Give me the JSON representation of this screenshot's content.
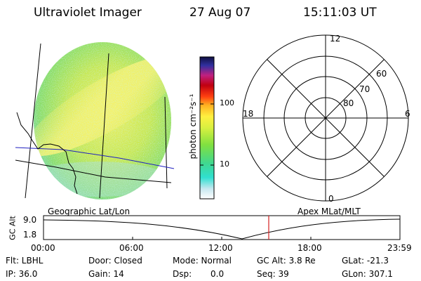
{
  "header": {
    "instrument": "Ultraviolet Imager",
    "date": "27 Aug 07",
    "time": "15:11:03 UT"
  },
  "image_panel": {
    "projection_label": "Geographic Lat/Lon"
  },
  "colorbar": {
    "unit_label": "photon cm⁻²s⁻¹",
    "tick_labels": [
      "100",
      "10"
    ]
  },
  "polar_plot": {
    "projection_label": "Apex MLat/MLT",
    "mlt_labels": {
      "top": "12",
      "left": "18",
      "right": "6",
      "bottom": "0"
    },
    "mlat_labels": [
      "60",
      "70",
      "80"
    ]
  },
  "altitude_plot": {
    "ylabel": "GC Alt",
    "ytick_labels": [
      "9.0",
      "1.8"
    ],
    "xtick_labels": [
      "00:00",
      "06:00",
      "12:00",
      "18:00",
      "23:59"
    ],
    "marker_color": "#d62020"
  },
  "status": {
    "filter": "Flt: LBHL",
    "ip": "IP: 36.0",
    "door": "Door: Closed",
    "gain": "Gain: 14",
    "mode": "Mode: Normal",
    "dsp_label": "Dsp:",
    "dsp_value": "0.0",
    "gc_alt": "GC Alt: 3.8 Re",
    "seq": "Seq: 39",
    "glat": "GLat: -21.3",
    "glon": "GLon: 307.1"
  }
}
